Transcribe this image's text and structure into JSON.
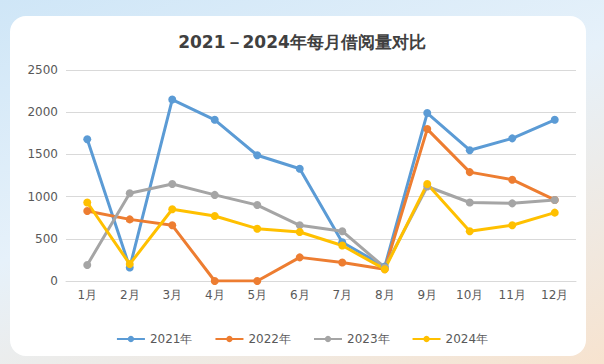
{
  "chart_data": {
    "type": "line",
    "title": "2021－2024年每月借阅量对比",
    "categories": [
      "1月",
      "2月",
      "3月",
      "4月",
      "5月",
      "6月",
      "7月",
      "8月",
      "9月",
      "10月",
      "11月",
      "12月"
    ],
    "series": [
      {
        "name": "2021年",
        "color": "#5b9bd5",
        "values": [
          1680,
          160,
          2150,
          1910,
          1490,
          1330,
          460,
          170,
          1990,
          1550,
          1690,
          1910
        ]
      },
      {
        "name": "2022年",
        "color": "#ed7d31",
        "values": [
          830,
          730,
          660,
          0,
          0,
          280,
          220,
          140,
          1800,
          1290,
          1200,
          960
        ]
      },
      {
        "name": "2023年",
        "color": "#a5a5a5",
        "values": [
          190,
          1040,
          1150,
          1020,
          900,
          660,
          590,
          160,
          1120,
          930,
          920,
          960
        ]
      },
      {
        "name": "2024年",
        "color": "#ffc000",
        "values": [
          930,
          200,
          850,
          770,
          620,
          580,
          420,
          140,
          1150,
          590,
          660,
          810
        ]
      }
    ],
    "ylim": [
      0,
      2500
    ],
    "yticks": [
      0,
      500,
      1000,
      1500,
      2000,
      2500
    ],
    "grid": true,
    "legend": "bottom",
    "marker": "circle"
  }
}
